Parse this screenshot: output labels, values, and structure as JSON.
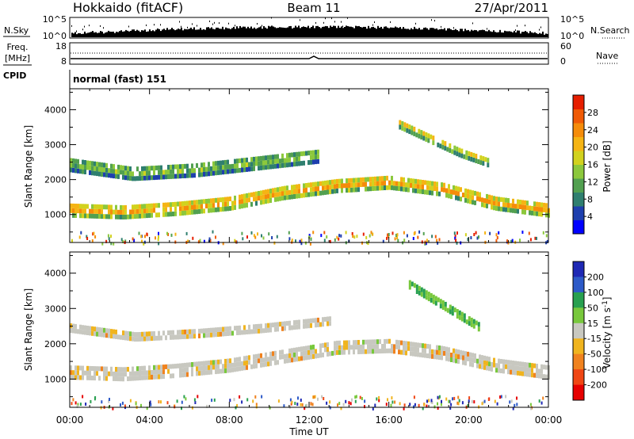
{
  "header": {
    "title": "Hokkaido (fitACF)",
    "beam": "Beam 11",
    "date": "27/Apr/2011"
  },
  "noise_panel": {
    "left_label": "N.Sky",
    "right_label": "N.Search",
    "left_ticks": [
      "10^5",
      "10^0"
    ],
    "right_ticks": [
      "10^5",
      "10^0"
    ]
  },
  "freq_panel": {
    "left_label_line1": "Freq.",
    "left_label_line2": "[MHz]",
    "left_ticks": [
      "18",
      "8"
    ],
    "right_label": "Nave",
    "right_ticks": [
      "60",
      "0"
    ]
  },
  "cpid": {
    "label": "CPID",
    "value": "normal (fast) 151"
  },
  "x_axis": {
    "label": "Time UT",
    "ticks": [
      "00:00",
      "04:00",
      "08:00",
      "12:00",
      "16:00",
      "20:00",
      "00:00"
    ]
  },
  "chart_data": [
    {
      "type": "heatmap",
      "title": "",
      "ylabel": "Slant Range [km]",
      "xlabel": "",
      "x_hours": [
        0,
        24
      ],
      "ylim": [
        200,
        4600
      ],
      "y_ticks": [
        1000,
        2000,
        3000,
        4000
      ],
      "colorbar": {
        "label": "Power [dB]",
        "ticks": [
          "4",
          "8",
          "12",
          "16",
          "20",
          "24",
          "28"
        ],
        "range": [
          0,
          32
        ],
        "colors": [
          "#0000ff",
          "#1e3fae",
          "#2f7f6f",
          "#52a050",
          "#8cc83c",
          "#d2d21e",
          "#f5b414",
          "#f58c0a",
          "#f05a05",
          "#e61e00"
        ]
      },
      "bands": [
        {
          "name": "",
          "start_h": 0.0,
          "end_h": 24.0,
          "center_km": [
            1150,
            1100,
            1200,
            1350,
            1650,
            1850,
            1950,
            1750,
            1350,
            1150
          ],
          "width_km": 350,
          "level_db": 24
        },
        {
          "name": "",
          "start_h": 0.0,
          "end_h": 12.5,
          "center_km": [
            2450,
            2200,
            2300,
            2500,
            2700
          ],
          "width_km": 350,
          "level_db": 14
        },
        {
          "name": "",
          "start_h": 16.5,
          "end_h": 21.0,
          "center_km": [
            3600,
            3200,
            2800,
            2500
          ],
          "width_km": 200,
          "level_db": 20
        }
      ]
    },
    {
      "type": "heatmap",
      "title": "",
      "ylabel": "Slant Range [km]",
      "xlabel": "Time UT",
      "x_hours": [
        0,
        24
      ],
      "ylim": [
        200,
        4600
      ],
      "y_ticks": [
        1000,
        2000,
        3000,
        4000
      ],
      "colorbar": {
        "label": "Velocity [m s-1]",
        "ticks": [
          "200",
          "100",
          "50",
          "15",
          "-15",
          "-50",
          "-100",
          "-200"
        ],
        "colors": [
          "#1e28b4",
          "#2d5ac8",
          "#28a050",
          "#78c83c",
          "#c8c8c0",
          "#f0b41e",
          "#f0821e",
          "#f04614",
          "#e60000"
        ]
      },
      "bands": [
        {
          "name": "",
          "start_h": 0.0,
          "end_h": 24.0,
          "center_km": [
            1250,
            1200,
            1300,
            1450,
            1700,
            1950,
            2000,
            1800,
            1450,
            1250
          ],
          "width_km": 400,
          "level_ms": 0
        },
        {
          "name": "",
          "start_h": 0.0,
          "end_h": 13.0,
          "center_km": [
            2500,
            2250,
            2350,
            2500,
            2700
          ],
          "width_km": 250,
          "level_ms": 0
        },
        {
          "name": "",
          "start_h": 17.0,
          "end_h": 20.5,
          "center_km": [
            3700,
            3300,
            2900,
            2500
          ],
          "width_km": 200,
          "level_ms": 60
        }
      ]
    }
  ]
}
